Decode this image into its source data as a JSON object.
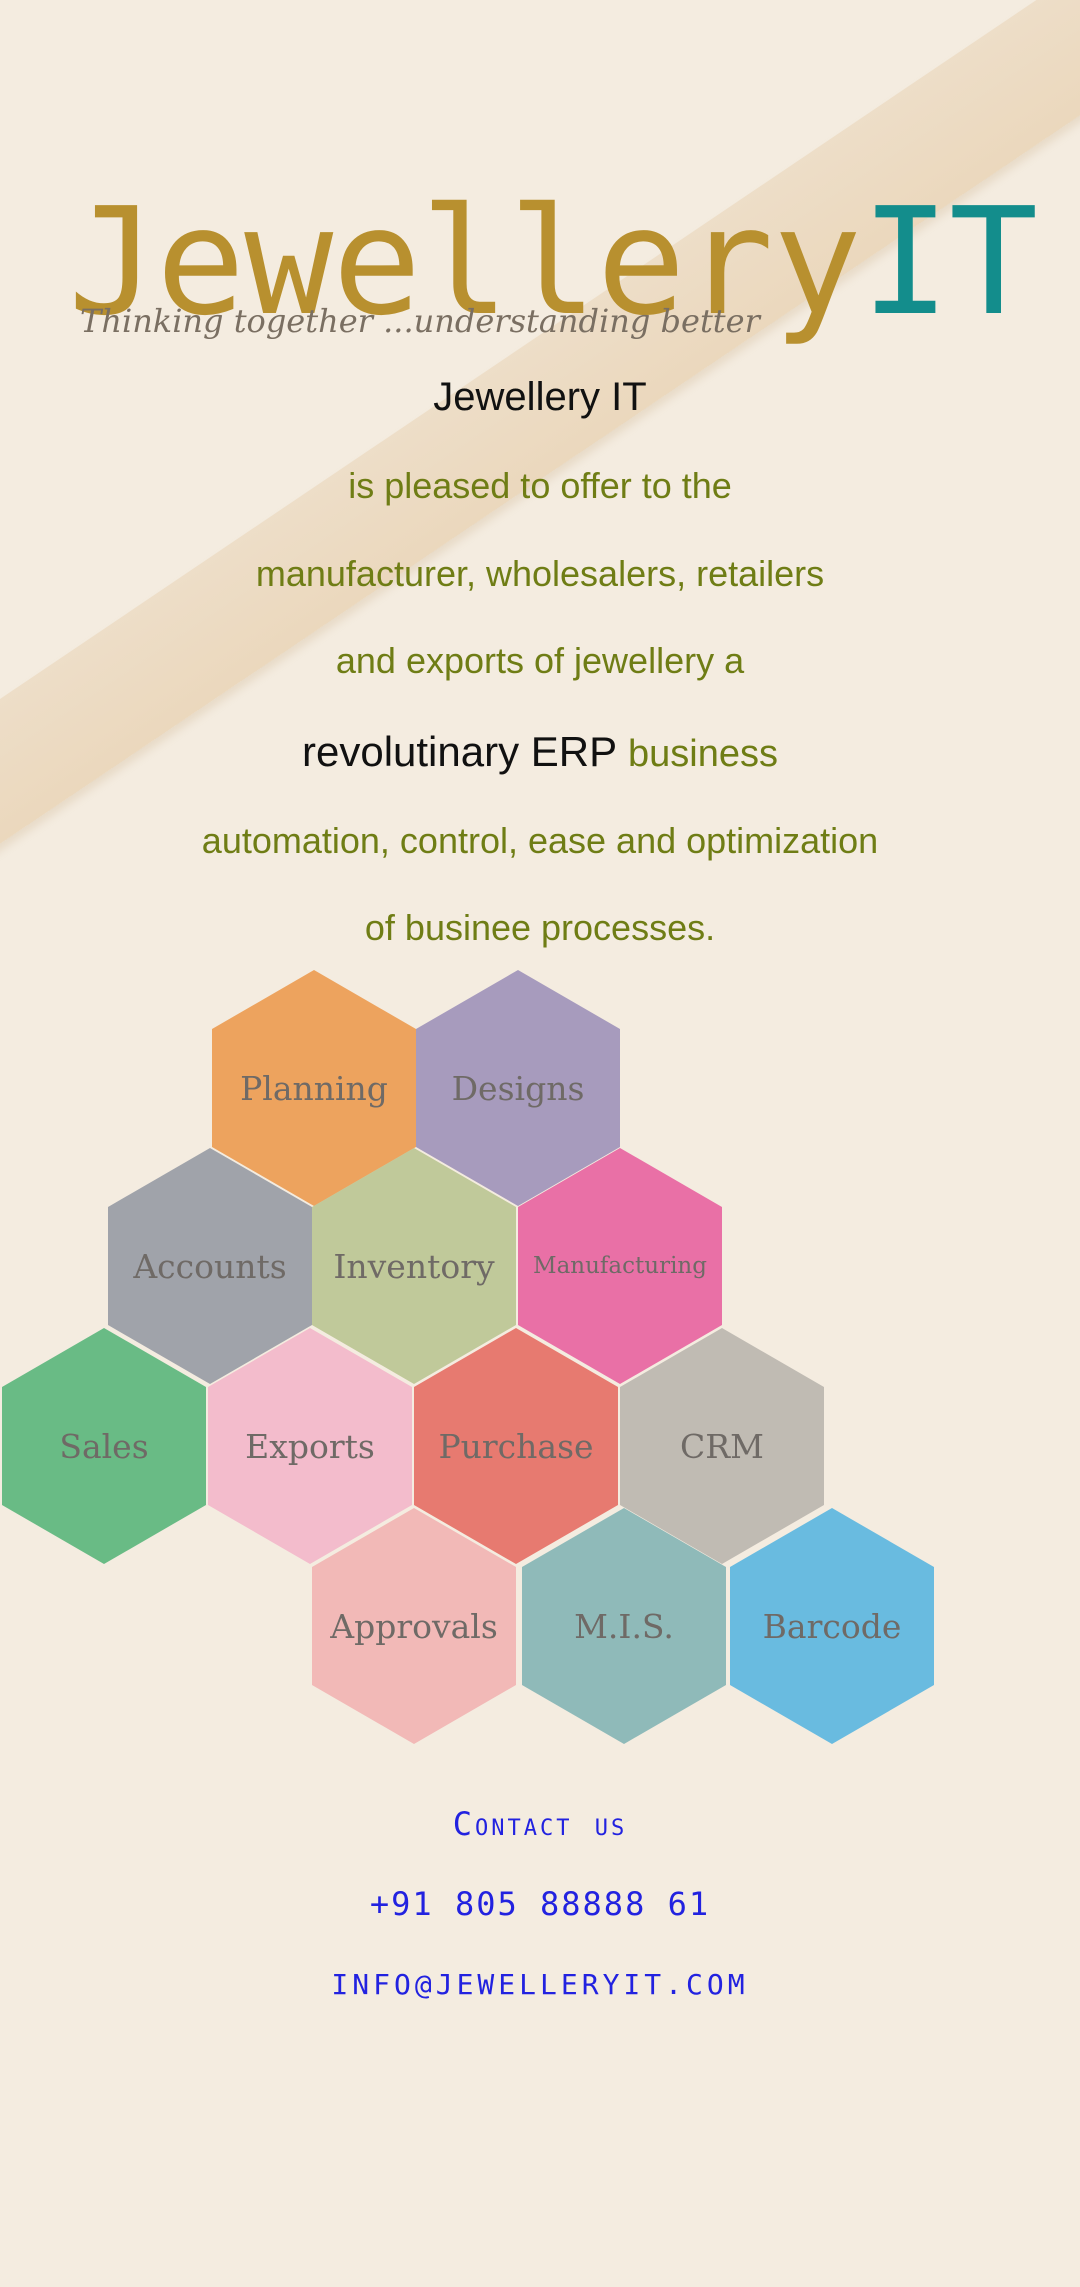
{
  "logo": {
    "word_gold": "Jewellery",
    "word_teal": "IT",
    "tagline": "Thinking together ...understanding better"
  },
  "intro": {
    "line1": "Jewellery IT",
    "line2": "is pleased to offer to the",
    "line3": "manufacturer, wholesalers, retailers",
    "line4": "and exports of jewellery a",
    "line5_dark": "revolutinary ERP",
    "line5_green": "business",
    "line6": "automation, control, ease and optimization",
    "line7": "of businee processes."
  },
  "modules": [
    {
      "label": "Planning",
      "color": "#eda35e"
    },
    {
      "label": "Designs",
      "color": "#a79bbd"
    },
    {
      "label": "Accounts",
      "color": "#a0a3aa"
    },
    {
      "label": "Inventory",
      "color": "#c0c99a"
    },
    {
      "label": "Manufacturing",
      "color": "#e970a6"
    },
    {
      "label": "Sales",
      "color": "#69bb85"
    },
    {
      "label": "Exports",
      "color": "#f3bccc"
    },
    {
      "label": "Purchase",
      "color": "#e77a70"
    },
    {
      "label": "CRM",
      "color": "#c0bbb3"
    },
    {
      "label": "Approvals",
      "color": "#f2b9b7"
    },
    {
      "label": "M.I.S.",
      "color": "#8fbab9"
    },
    {
      "label": "Barcode",
      "color": "#69bbe0"
    }
  ],
  "contact": {
    "title": "Contact us",
    "phone": "+91 805 88888 61",
    "email": "INFO@JEWELLERYIT.COM"
  }
}
